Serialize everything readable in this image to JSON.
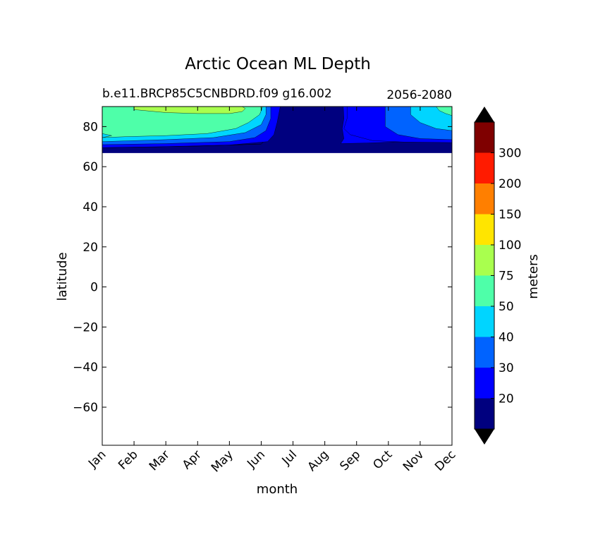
{
  "chart_data": {
    "type": "contour",
    "title": "Arctic Ocean ML Depth",
    "subtitle_left": "b.e11.BRCP85C5CNBDRD.f09 g16.002",
    "subtitle_right": "2056-2080",
    "xlabel": "month",
    "ylabel": "latitude",
    "x_categories": [
      "Jan",
      "Feb",
      "Mar",
      "Apr",
      "May",
      "Jun",
      "Jul",
      "Aug",
      "Sep",
      "Oct",
      "Nov",
      "Dec"
    ],
    "ylim": [
      -79,
      90
    ],
    "y_ticks": [
      80,
      60,
      40,
      20,
      0,
      -20,
      -40,
      -60
    ],
    "y_tick_labels": [
      "80",
      "60",
      "40",
      "20",
      "0",
      "−20",
      "−40",
      "−60"
    ],
    "data_lat_min": 67,
    "colorbar": {
      "label": "meters",
      "levels": [
        10,
        20,
        30,
        40,
        50,
        75,
        100,
        150,
        200,
        300,
        400
      ],
      "tick_values": [
        20,
        30,
        40,
        50,
        75,
        100,
        150,
        200,
        300
      ],
      "tick_labels": [
        "20",
        "30",
        "40",
        "50",
        "75",
        "100",
        "150",
        "200",
        "300"
      ],
      "colors": [
        "#00007f",
        "#0000ff",
        "#0063ff",
        "#00d5ff",
        "#4effa9",
        "#a9ff4e",
        "#ffe500",
        "#ff7f00",
        "#ff1b00",
        "#7f0000"
      ],
      "under_color": "#000000",
      "over_color": "#000000"
    },
    "contours": {
      "lat": [
        67,
        69,
        71,
        73,
        75,
        77,
        79,
        81,
        83,
        85,
        87,
        89,
        90
      ],
      "level_15": [
        0,
        0,
        0,
        0,
        0,
        0,
        0,
        0,
        0,
        0,
        0,
        0
      ],
      "level_25": [
        7.2,
        7.8,
        8.3,
        8.8,
        9.5,
        10.0,
        5.4,
        5.7,
        5.9,
        6.0,
        6.1,
        6.2
      ],
      "level_35": [
        0,
        0,
        0,
        0,
        0,
        0,
        5.0,
        5.2,
        5.5,
        5.7,
        5.9,
        6.0
      ],
      "level_45": [
        0,
        0,
        0,
        0,
        0,
        0,
        4.7,
        5.0,
        5.2,
        5.4,
        5.6,
        5.8
      ]
    }
  }
}
